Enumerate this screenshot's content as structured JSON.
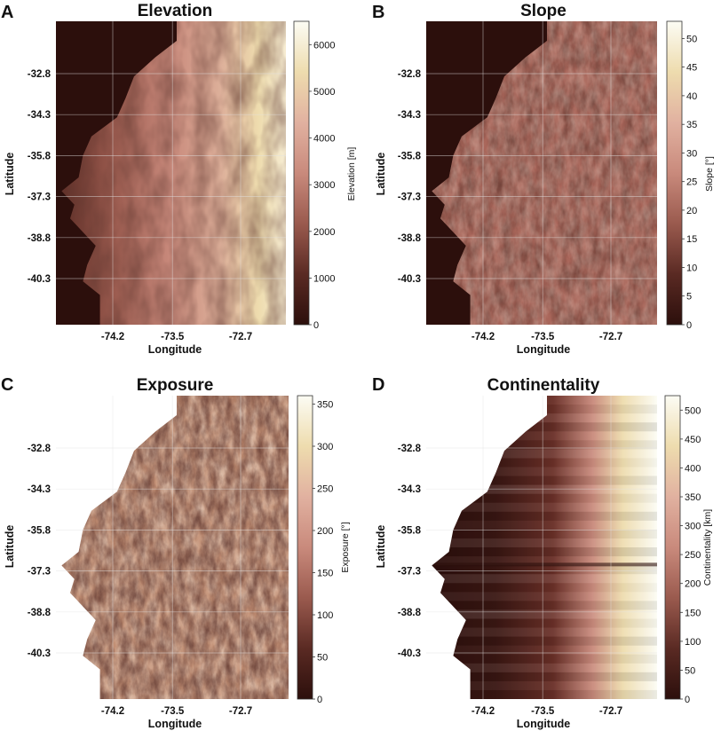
{
  "colors": {
    "ramp": [
      "#2c0f0c",
      "#5a2a23",
      "#9a5a4e",
      "#c98a7c",
      "#e1b1a0",
      "#eedcae",
      "#fcfcf4"
    ],
    "sea": "#2c0f0c",
    "background": "#ffffff",
    "grid": "#e3e3e3"
  },
  "chart_data": [
    {
      "type": "heatmap",
      "panel_label": "A",
      "title": "Elevation",
      "xlabel": "Longitude",
      "ylabel": "Latitude",
      "x_ticks": [
        -74.2,
        -73.5,
        -72.7
      ],
      "x_tick_labels": [
        "-74.2",
        "-73.5",
        "-72.7"
      ],
      "y_ticks": [
        -32.8,
        -34.3,
        -35.8,
        -37.3,
        -38.8,
        -40.3
      ],
      "y_tick_labels": [
        "-32.8",
        "-34.3",
        "-35.8",
        "-37.3",
        "-38.8",
        "-40.3"
      ],
      "colorbar": {
        "label": "Elevation [m]",
        "range": [
          0,
          6500
        ],
        "ticks": [
          0,
          1000,
          2000,
          3000,
          4000,
          5000,
          6000
        ],
        "tick_labels": [
          "0",
          "1000",
          "2000",
          "3000",
          "4000",
          "5000",
          "6000"
        ]
      },
      "variable": "elevation",
      "sea_shown": true,
      "grid": true
    },
    {
      "type": "heatmap",
      "panel_label": "B",
      "title": "Slope",
      "xlabel": "Longitude",
      "ylabel": "Latitude",
      "x_ticks": [
        -74.2,
        -73.5,
        -72.7
      ],
      "x_tick_labels": [
        "-74.2",
        "-73.5",
        "-72.7"
      ],
      "y_ticks": [
        -32.8,
        -34.3,
        -35.8,
        -37.3,
        -38.8,
        -40.3
      ],
      "y_tick_labels": [
        "-32.8",
        "-34.3",
        "-35.8",
        "-37.3",
        "-38.8",
        "-40.3"
      ],
      "colorbar": {
        "label": "Slope [°]",
        "range": [
          0,
          53
        ],
        "ticks": [
          0,
          5,
          10,
          15,
          20,
          25,
          30,
          35,
          40,
          45,
          50
        ],
        "tick_labels": [
          "0",
          "5",
          "10",
          "15",
          "20",
          "25",
          "30",
          "35",
          "40",
          "45",
          "50"
        ]
      },
      "variable": "slope",
      "sea_shown": true,
      "grid": true
    },
    {
      "type": "heatmap",
      "panel_label": "C",
      "title": "Exposure",
      "xlabel": "Longitude",
      "ylabel": "Latitude",
      "x_ticks": [
        -74.2,
        -73.5,
        -72.7
      ],
      "x_tick_labels": [
        "-74.2",
        "-73.5",
        "-72.7"
      ],
      "y_ticks": [
        -32.8,
        -34.3,
        -35.8,
        -37.3,
        -38.8,
        -40.3
      ],
      "y_tick_labels": [
        "-32.8",
        "-34.3",
        "-35.8",
        "-37.3",
        "-38.8",
        "-40.3"
      ],
      "colorbar": {
        "label": "Exposure [°]",
        "range": [
          0,
          360
        ],
        "ticks": [
          0,
          50,
          100,
          150,
          200,
          250,
          300,
          350
        ],
        "tick_labels": [
          "0",
          "50",
          "100",
          "150",
          "200",
          "250",
          "300",
          "350"
        ]
      },
      "variable": "exposure",
      "sea_shown": false,
      "grid": true
    },
    {
      "type": "heatmap",
      "panel_label": "D",
      "title": "Continentality",
      "xlabel": "Longitude",
      "ylabel": "Latitude",
      "x_ticks": [
        -74.2,
        -73.5,
        -72.7
      ],
      "x_tick_labels": [
        "-74.2",
        "-73.5",
        "-72.7"
      ],
      "y_ticks": [
        -32.8,
        -34.3,
        -35.8,
        -37.3,
        -38.8,
        -40.3
      ],
      "y_tick_labels": [
        "-32.8",
        "-34.3",
        "-35.8",
        "-37.3",
        "-38.8",
        "-40.3"
      ],
      "colorbar": {
        "label": "Continentality [km]",
        "range": [
          0,
          525
        ],
        "ticks": [
          0,
          50,
          100,
          150,
          200,
          250,
          300,
          350,
          400,
          450,
          500
        ],
        "tick_labels": [
          "0",
          "50",
          "100",
          "150",
          "200",
          "250",
          "300",
          "350",
          "400",
          "450",
          "500"
        ]
      },
      "variable": "continentality",
      "sea_shown": false,
      "grid": true
    }
  ]
}
